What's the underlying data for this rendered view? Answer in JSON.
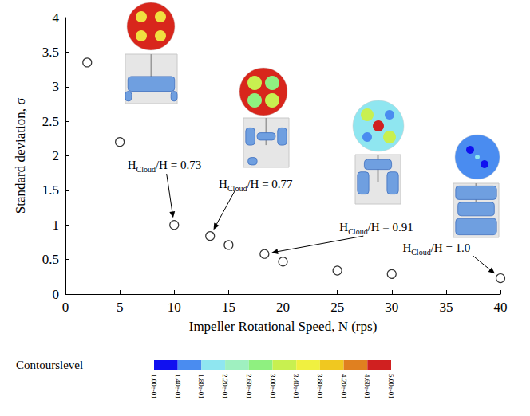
{
  "chart_data": {
    "type": "scatter",
    "x_label": "Impeller Rotational Speed, N (rps)",
    "y_label": "Standard deviation, σ",
    "x": [
      2,
      5,
      10,
      13.3,
      15,
      18.3,
      20,
      25,
      30,
      40
    ],
    "values": [
      3.35,
      2.2,
      1.0,
      0.84,
      0.71,
      0.58,
      0.47,
      0.34,
      0.29,
      0.23
    ],
    "color": "#000000",
    "marker": "circle_open",
    "xlim": [
      0,
      40
    ],
    "xticks": [
      0,
      5,
      10,
      15,
      20,
      25,
      30,
      35,
      40
    ],
    "ylim": [
      0,
      4
    ],
    "yticks": [
      0,
      0.5,
      1,
      1.5,
      2,
      2.5,
      3,
      3.5,
      4
    ],
    "grid": false,
    "annotations": [
      {
        "text": "HCloud/H = 0.73",
        "subscript": "Cloud",
        "x": 10,
        "y": 1.0
      },
      {
        "text": "HCloud/H = 0.77",
        "subscript": "Cloud",
        "x": 13.3,
        "y": 0.84
      },
      {
        "text": "HCloud/H = 0.91",
        "subscript": "Cloud",
        "x": 18.3,
        "y": 0.58
      },
      {
        "text": "HCloud/H = 1.0",
        "subscript": "Cloud",
        "x": 40,
        "y": 0.23
      }
    ],
    "colorbar": {
      "title": "Contourslevel",
      "range": [
        0.1,
        0.5
      ],
      "ticks": [
        {
          "value": 0.1,
          "label": "1.00e-01"
        },
        {
          "value": 0.14,
          "label": "1.40e-01"
        },
        {
          "value": 0.18,
          "label": "1.80e-01"
        },
        {
          "value": 0.22,
          "label": "2.20e-01"
        },
        {
          "value": 0.26,
          "label": "2.60e-01"
        },
        {
          "value": 0.3,
          "label": "3.00e-01"
        },
        {
          "value": 0.34,
          "label": "3.40e-01"
        },
        {
          "value": 0.38,
          "label": "3.80e-01"
        },
        {
          "value": 0.42,
          "label": "4.20e-01"
        },
        {
          "value": 0.46,
          "label": "4.60e-01"
        },
        {
          "value": 0.5,
          "label": "5.00e-01"
        }
      ],
      "colors": [
        "#1010f0",
        "#4a8cf0",
        "#8fe6f0",
        "#9ff0c0",
        "#8ff080",
        "#c8f050",
        "#f0f040",
        "#f0c820",
        "#e08020",
        "#d02020"
      ]
    }
  }
}
